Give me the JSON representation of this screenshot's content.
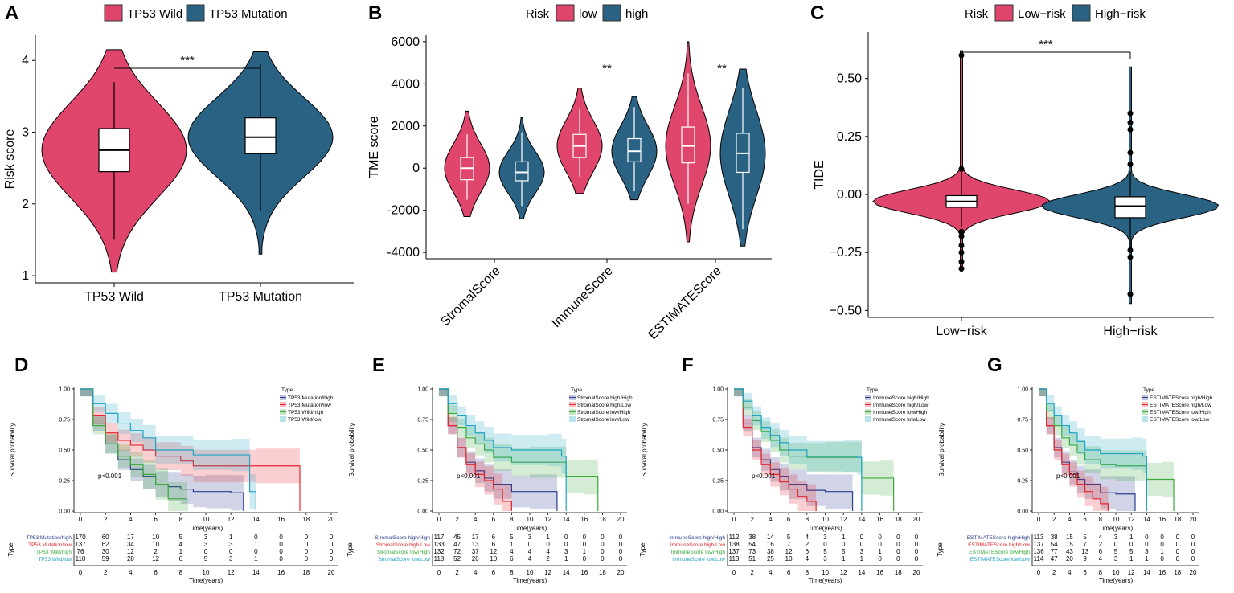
{
  "chart_data": [
    {
      "id": "A",
      "type": "violin",
      "panel_label": "A",
      "legend": [
        {
          "label": "TP53 Wild",
          "color": "#E0466C"
        },
        {
          "label": "TP53 Mutation",
          "color": "#2A6283"
        }
      ],
      "categories": [
        "TP53 Wild",
        "TP53 Mutation"
      ],
      "ylabel": "Risk score",
      "ylim": [
        0.9,
        4.35
      ],
      "yticks": [
        "1",
        "2",
        "3",
        "4"
      ],
      "series": [
        {
          "name": "TP53 Wild",
          "min": 1.05,
          "q1": 2.45,
          "median": 2.75,
          "q3": 3.05,
          "max": 4.15,
          "whisker_low": 1.5,
          "whisker_high": 3.7
        },
        {
          "name": "TP53 Mutation",
          "min": 1.3,
          "q1": 2.7,
          "median": 2.93,
          "q3": 3.2,
          "max": 4.12,
          "whisker_low": 1.9,
          "whisker_high": 3.95
        }
      ],
      "annotations": [
        {
          "text": "***",
          "between": [
            "TP53 Wild",
            "TP53 Mutation"
          ]
        }
      ]
    },
    {
      "id": "B",
      "type": "violin",
      "panel_label": "B",
      "legend_title": "Risk",
      "legend": [
        {
          "label": "low",
          "color": "#E0466C"
        },
        {
          "label": "high",
          "color": "#2A6283"
        }
      ],
      "categories": [
        "StromalScore",
        "ImmuneScore",
        "ESTIMATEScore"
      ],
      "ylabel": "TME score",
      "ylim": [
        -4300,
        6300
      ],
      "yticks": [
        "-4000",
        "-2000",
        "0",
        "2000",
        "4000",
        "6000"
      ],
      "series": [
        {
          "name": "low",
          "groups": [
            {
              "q1": -550,
              "median": 0,
              "q3": 500,
              "whisker_low": -1500,
              "whisker_high": 1600,
              "min": -2300,
              "max": 2700
            },
            {
              "q1": 500,
              "median": 1050,
              "q3": 1600,
              "whisker_low": -400,
              "whisker_high": 2800,
              "min": -1200,
              "max": 3800
            },
            {
              "q1": 250,
              "median": 1050,
              "q3": 1950,
              "whisker_low": -1700,
              "whisker_high": 4500,
              "min": -3500,
              "max": 6000
            }
          ]
        },
        {
          "name": "high",
          "groups": [
            {
              "q1": -600,
              "median": -200,
              "q3": 300,
              "whisker_low": -1800,
              "whisker_high": 1700,
              "min": -2400,
              "max": 2400
            },
            {
              "q1": 300,
              "median": 800,
              "q3": 1400,
              "whisker_low": -1100,
              "whisker_high": 2900,
              "min": -1500,
              "max": 3400
            },
            {
              "q1": -200,
              "median": 700,
              "q3": 1650,
              "whisker_low": -2900,
              "whisker_high": 3800,
              "min": -3700,
              "max": 4700
            }
          ]
        }
      ],
      "annotations": [
        {
          "text": "**",
          "category": "ImmuneScore"
        },
        {
          "text": "**",
          "category": "ESTIMATEScore"
        }
      ]
    },
    {
      "id": "C",
      "type": "violin",
      "panel_label": "C",
      "legend_title": "Risk",
      "legend": [
        {
          "label": "Low−risk",
          "color": "#E0466C"
        },
        {
          "label": "High−risk",
          "color": "#2A6283"
        }
      ],
      "categories": [
        "Low−risk",
        "High−risk"
      ],
      "ylabel": "TIDE",
      "ylim": [
        -0.53,
        0.7
      ],
      "yticks": [
        "−0.50",
        "−0.25",
        "0.00",
        "0.25",
        "0.50"
      ],
      "series": [
        {
          "name": "Low−risk",
          "q1": -0.055,
          "median": -0.03,
          "q3": -0.005,
          "whisker_low": -0.14,
          "whisker_high": 0.1,
          "min": -0.33,
          "max": 0.62,
          "outliers": [
            0.6,
            0.11,
            -0.16,
            -0.18,
            -0.22,
            -0.25,
            -0.29,
            -0.32
          ]
        },
        {
          "name": "High−risk",
          "q1": -0.1,
          "median": -0.05,
          "q3": -0.01,
          "whisker_low": -0.23,
          "whisker_high": 0.1,
          "min": -0.47,
          "max": 0.55,
          "outliers": [
            0.35,
            0.31,
            0.28,
            0.18,
            0.13,
            -0.24,
            -0.27,
            -0.43
          ]
        }
      ],
      "annotations": [
        {
          "text": "***",
          "between": [
            "Low−risk",
            "High−risk"
          ]
        }
      ]
    },
    {
      "id": "D",
      "type": "line",
      "panel_label": "D",
      "ylabel": "Survival probability",
      "xlabel": "Time(years)",
      "xlim": [
        0,
        20
      ],
      "ylim": [
        0,
        1
      ],
      "xticks": [
        "0",
        "2",
        "4",
        "6",
        "8",
        "10",
        "12",
        "14",
        "16",
        "18",
        "20"
      ],
      "yticks": [
        "0.00",
        "0.25",
        "0.50",
        "0.75",
        "1.00"
      ],
      "legend_title": "Type",
      "pvalue": "p<0.001",
      "risk_table_title": "Type",
      "series": [
        {
          "name": "TP53 Mutation/high",
          "color": "#2B3D8F",
          "x": [
            0,
            1,
            2,
            3,
            4,
            5,
            6,
            7,
            8,
            9,
            10,
            12,
            13
          ],
          "y": [
            1,
            0.72,
            0.55,
            0.42,
            0.34,
            0.28,
            0.22,
            0.2,
            0.18,
            0.16,
            0.16,
            0.15,
            0.0
          ],
          "at_risk": [
            "170",
            "60",
            "17",
            "10",
            "5",
            "3",
            "1",
            "0",
            "0",
            "0",
            "0"
          ]
        },
        {
          "name": "TP53 Mutation/low",
          "color": "#E8262F",
          "x": [
            0,
            1,
            2,
            3,
            4,
            5,
            6,
            8,
            9,
            14,
            17.5
          ],
          "y": [
            1,
            0.78,
            0.64,
            0.58,
            0.54,
            0.5,
            0.45,
            0.41,
            0.37,
            0.37,
            0.0
          ],
          "at_risk": [
            "137",
            "62",
            "34",
            "10",
            "4",
            "3",
            "3",
            "1",
            "0",
            "0",
            "0"
          ]
        },
        {
          "name": "TP53 Wild/high",
          "color": "#3BA93A",
          "x": [
            0,
            1,
            2,
            3,
            4,
            5,
            6,
            7,
            8.5
          ],
          "y": [
            1,
            0.7,
            0.55,
            0.45,
            0.38,
            0.3,
            0.22,
            0.1,
            0.0
          ],
          "at_risk": [
            "76",
            "30",
            "12",
            "2",
            "1",
            "0",
            "0",
            "0",
            "0",
            "0",
            "0"
          ]
        },
        {
          "name": "TP53 Wild/low",
          "color": "#1FA3C6",
          "x": [
            0,
            1,
            2,
            3,
            4,
            5,
            6,
            9,
            12,
            13.5,
            14
          ],
          "y": [
            1,
            0.88,
            0.8,
            0.72,
            0.66,
            0.6,
            0.5,
            0.46,
            0.46,
            0.16,
            0.0
          ],
          "at_risk": [
            "110",
            "59",
            "28",
            "12",
            "6",
            "5",
            "3",
            "1",
            "0",
            "0",
            "0"
          ]
        }
      ]
    },
    {
      "id": "E",
      "type": "line",
      "panel_label": "E",
      "ylabel": "Survival probability",
      "xlabel": "Time(years)",
      "xlim": [
        0,
        20
      ],
      "ylim": [
        0,
        1
      ],
      "xticks": [
        "0",
        "2",
        "4",
        "6",
        "8",
        "10",
        "12",
        "14",
        "16",
        "18",
        "20"
      ],
      "yticks": [
        "0.00",
        "0.25",
        "0.50",
        "0.75",
        "1.00"
      ],
      "legend_title": "Type",
      "pvalue": "p<0.001",
      "risk_table_title": "Type",
      "series": [
        {
          "name": "StromalScore high/High",
          "color": "#2B3D8F",
          "x": [
            0,
            1,
            2,
            3,
            4,
            5,
            6,
            8,
            10,
            13
          ],
          "y": [
            1,
            0.7,
            0.52,
            0.4,
            0.33,
            0.27,
            0.22,
            0.16,
            0.16,
            0.0
          ],
          "at_risk": [
            "117",
            "45",
            "17",
            "6",
            "5",
            "3",
            "1",
            "0",
            "0",
            "0",
            "0"
          ]
        },
        {
          "name": "StromalScore high/Low",
          "color": "#E8262F",
          "x": [
            0,
            1,
            2,
            3,
            4,
            5,
            6,
            7,
            8
          ],
          "y": [
            1,
            0.7,
            0.52,
            0.38,
            0.3,
            0.25,
            0.18,
            0.08,
            0.0
          ],
          "at_risk": [
            "133",
            "47",
            "13",
            "6",
            "1",
            "0",
            "0",
            "0",
            "0",
            "0",
            "0"
          ]
        },
        {
          "name": "StromalScore low/High",
          "color": "#3BA93A",
          "x": [
            0,
            1,
            2,
            3,
            4,
            5,
            6,
            8,
            10,
            14,
            16,
            17.5
          ],
          "y": [
            1,
            0.8,
            0.68,
            0.6,
            0.55,
            0.5,
            0.44,
            0.4,
            0.4,
            0.28,
            0.28,
            0.0
          ],
          "at_risk": [
            "132",
            "72",
            "37",
            "12",
            "4",
            "4",
            "4",
            "3",
            "1",
            "0",
            "0"
          ]
        },
        {
          "name": "StromalScore low/Low",
          "color": "#1FA3C6",
          "x": [
            0,
            1,
            2,
            3,
            4,
            5,
            6,
            8,
            12,
            13.5,
            14
          ],
          "y": [
            1,
            0.88,
            0.78,
            0.7,
            0.64,
            0.58,
            0.52,
            0.5,
            0.5,
            0.45,
            0.0
          ],
          "at_risk": [
            "118",
            "52",
            "26",
            "10",
            "6",
            "4",
            "2",
            "1",
            "0",
            "0",
            "0"
          ]
        }
      ]
    },
    {
      "id": "F",
      "type": "line",
      "panel_label": "F",
      "ylabel": "Survival probability",
      "xlabel": "Time(years)",
      "xlim": [
        0,
        20
      ],
      "ylim": [
        0,
        1
      ],
      "xticks": [
        "0",
        "2",
        "4",
        "6",
        "8",
        "10",
        "12",
        "14",
        "16",
        "18",
        "20"
      ],
      "yticks": [
        "0.00",
        "0.25",
        "0.50",
        "0.75",
        "1.00"
      ],
      "legend_title": "Type",
      "pvalue": "p<0.001",
      "risk_table_title": "Type",
      "series": [
        {
          "name": "ImmuneScore high/High",
          "color": "#2B3D8F",
          "x": [
            0,
            1,
            2,
            3,
            4,
            5,
            6,
            8,
            10,
            13
          ],
          "y": [
            1,
            0.72,
            0.52,
            0.42,
            0.34,
            0.28,
            0.22,
            0.17,
            0.16,
            0.0
          ],
          "at_risk": [
            "112",
            "38",
            "14",
            "5",
            "4",
            "3",
            "1",
            "0",
            "0",
            "0",
            "0"
          ]
        },
        {
          "name": "ImmuneScore high/Low",
          "color": "#E8262F",
          "x": [
            0,
            1,
            2,
            3,
            4,
            5,
            6,
            7,
            8,
            9
          ],
          "y": [
            1,
            0.68,
            0.5,
            0.38,
            0.3,
            0.24,
            0.18,
            0.12,
            0.08,
            0.0
          ],
          "at_risk": [
            "138",
            "54",
            "16",
            "7",
            "2",
            "0",
            "0",
            "0",
            "0",
            "0",
            "0"
          ]
        },
        {
          "name": "ImmuneScore low/High",
          "color": "#3BA93A",
          "x": [
            0,
            1,
            2,
            3,
            4,
            5,
            6,
            8,
            10,
            14,
            16,
            17.5
          ],
          "y": [
            1,
            0.85,
            0.74,
            0.65,
            0.58,
            0.5,
            0.45,
            0.44,
            0.44,
            0.27,
            0.27,
            0.0
          ],
          "at_risk": [
            "137",
            "73",
            "38",
            "12",
            "6",
            "5",
            "5",
            "3",
            "1",
            "0",
            "0"
          ]
        },
        {
          "name": "ImmuneScore low/Low",
          "color": "#1FA3C6",
          "x": [
            0,
            1,
            2,
            3,
            4,
            5,
            6,
            8,
            12,
            13.5,
            14
          ],
          "y": [
            1,
            0.9,
            0.78,
            0.68,
            0.62,
            0.56,
            0.5,
            0.45,
            0.45,
            0.44,
            0.0
          ],
          "at_risk": [
            "113",
            "51",
            "25",
            "10",
            "4",
            "3",
            "1",
            "1",
            "0",
            "0",
            "0"
          ]
        }
      ]
    },
    {
      "id": "G",
      "type": "line",
      "panel_label": "G",
      "ylabel": "Survival probability",
      "xlabel": "Time(years)",
      "xlim": [
        0,
        20
      ],
      "ylim": [
        0,
        1
      ],
      "xticks": [
        "0",
        "2",
        "4",
        "6",
        "8",
        "10",
        "12",
        "14",
        "16",
        "18",
        "20"
      ],
      "yticks": [
        "0.00",
        "0.25",
        "0.50",
        "0.75",
        "1.00"
      ],
      "legend_title": "Type",
      "pvalue": "p<0.001",
      "risk_table_title": "Type",
      "series": [
        {
          "name": "ESTIMATEScore high/High",
          "color": "#2B3D8F",
          "x": [
            0,
            1,
            2,
            3,
            4,
            5,
            6,
            8,
            10,
            12.5
          ],
          "y": [
            1,
            0.7,
            0.52,
            0.4,
            0.32,
            0.26,
            0.22,
            0.15,
            0.14,
            0.0
          ],
          "at_risk": [
            "113",
            "38",
            "15",
            "5",
            "4",
            "3",
            "1",
            "0",
            "0",
            "0",
            "0"
          ]
        },
        {
          "name": "ESTIMATEScore high/Low",
          "color": "#E8262F",
          "x": [
            0,
            1,
            2,
            3,
            4,
            5,
            6,
            7,
            8,
            9
          ],
          "y": [
            1,
            0.7,
            0.5,
            0.38,
            0.3,
            0.22,
            0.16,
            0.1,
            0.06,
            0.0
          ],
          "at_risk": [
            "137",
            "54",
            "15",
            "7",
            "2",
            "0",
            "0",
            "0",
            "0",
            "0",
            "0"
          ]
        },
        {
          "name": "ESTIMATEScore low/High",
          "color": "#3BA93A",
          "x": [
            0,
            1,
            2,
            3,
            4,
            5,
            6,
            8,
            10,
            14,
            16,
            17.5
          ],
          "y": [
            1,
            0.82,
            0.7,
            0.6,
            0.54,
            0.48,
            0.42,
            0.38,
            0.37,
            0.26,
            0.26,
            0.0
          ],
          "at_risk": [
            "136",
            "77",
            "43",
            "13",
            "6",
            "5",
            "5",
            "3",
            "1",
            "0",
            "0"
          ]
        },
        {
          "name": "ESTIMATEScore low/Low",
          "color": "#1FA3C6",
          "x": [
            0,
            1,
            2,
            3,
            4,
            5,
            6,
            8,
            12,
            13.5,
            14
          ],
          "y": [
            1,
            0.88,
            0.78,
            0.7,
            0.64,
            0.57,
            0.5,
            0.47,
            0.47,
            0.45,
            0.0
          ],
          "at_risk": [
            "114",
            "47",
            "20",
            "9",
            "4",
            "3",
            "1",
            "1",
            "0",
            "0",
            "0"
          ]
        }
      ]
    }
  ]
}
